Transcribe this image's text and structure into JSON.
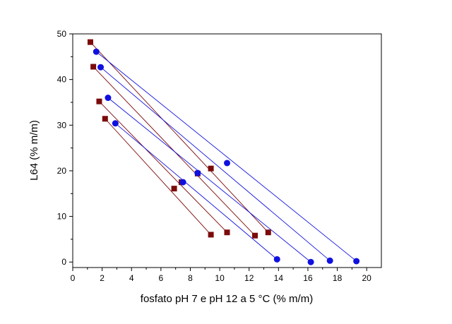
{
  "chart_data": {
    "type": "scatter",
    "xlabel": "fosfato pH 7 e pH 12 a 5 °C (% m/m)",
    "ylabel": "L64 (% m/m)",
    "xlim": [
      0,
      21
    ],
    "ylim": [
      -1.2,
      50
    ],
    "x_ticks": [
      0,
      2,
      4,
      6,
      8,
      10,
      12,
      14,
      16,
      18,
      20
    ],
    "y_ticks": [
      0,
      10,
      20,
      30,
      40,
      50
    ],
    "grid": false,
    "legend": "none",
    "series": [
      {
        "marker": "square",
        "color": "#7b0a0a",
        "tie_lines": [
          [
            [
              1.2,
              48.2
            ],
            [
              13.3,
              6.5
            ]
          ],
          [
            [
              1.4,
              42.8
            ],
            [
              12.4,
              5.8
            ]
          ],
          [
            [
              1.8,
              35.2
            ],
            [
              10.5,
              6.5
            ]
          ],
          [
            [
              2.2,
              31.4
            ],
            [
              9.4,
              6.0
            ]
          ]
        ],
        "points": [
          {
            "x": 9.4,
            "y": 20.5
          },
          {
            "x": 8.5,
            "y": 19.4
          },
          {
            "x": 7.4,
            "y": 17.5
          },
          {
            "x": 6.9,
            "y": 16.1
          }
        ]
      },
      {
        "marker": "circle",
        "color": "#1010e0",
        "tie_lines": [
          [
            [
              1.6,
              46.1
            ],
            [
              19.3,
              0.2
            ]
          ],
          [
            [
              1.9,
              42.7
            ],
            [
              17.5,
              0.3
            ]
          ],
          [
            [
              2.4,
              36.0
            ],
            [
              16.2,
              0.0
            ]
          ],
          [
            [
              2.9,
              30.4
            ],
            [
              13.9,
              0.6
            ]
          ]
        ],
        "points": [
          {
            "x": 10.5,
            "y": 21.7
          },
          {
            "x": 8.5,
            "y": 19.5
          },
          {
            "x": 7.5,
            "y": 17.5
          }
        ]
      }
    ]
  }
}
